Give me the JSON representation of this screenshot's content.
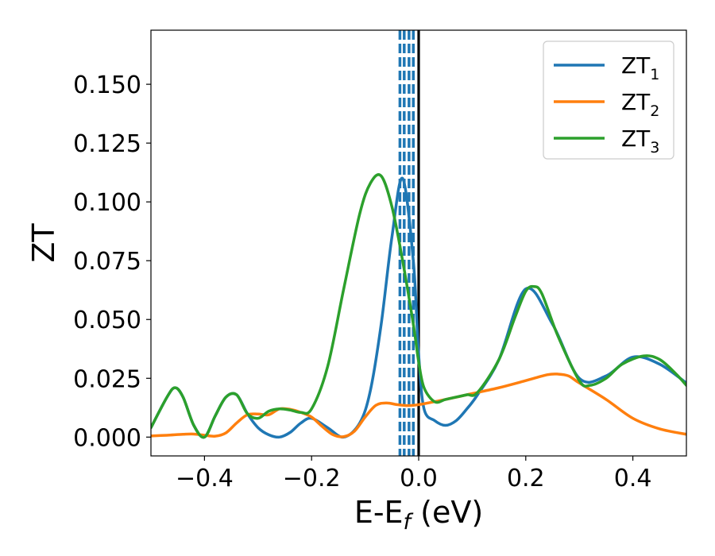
{
  "chart_data": {
    "type": "line",
    "title": "",
    "xlabel": "E-E",
    "xlabel_sub": "f",
    "xlabel_unit": " (eV)",
    "ylabel": "ZT",
    "xlim": [
      -0.5,
      0.5
    ],
    "ylim": [
      -0.008,
      0.173
    ],
    "xticks": [
      -0.4,
      -0.2,
      0.0,
      0.2,
      0.4
    ],
    "xtick_labels": [
      "−0.4",
      "−0.2",
      "0.0",
      "0.2",
      "0.4"
    ],
    "yticks": [
      0.0,
      0.025,
      0.05,
      0.075,
      0.1,
      0.125,
      0.15
    ],
    "ytick_labels": [
      "0.000",
      "0.025",
      "0.050",
      "0.075",
      "0.100",
      "0.125",
      "0.150"
    ],
    "grid": false,
    "legend_position": "top-right",
    "vlines": [
      {
        "x": 0.0,
        "color": "#000000",
        "style": "solid"
      },
      {
        "x": -0.035,
        "color": "#1f77b4",
        "style": "dashed"
      },
      {
        "x": -0.027,
        "color": "#1f77b4",
        "style": "dashed"
      },
      {
        "x": -0.018,
        "color": "#1f77b4",
        "style": "dashed"
      },
      {
        "x": -0.01,
        "color": "#1f77b4",
        "style": "dashed"
      }
    ],
    "series": [
      {
        "name": "ZT",
        "name_sub": "1",
        "color": "#1f77b4",
        "x": [
          -0.5,
          -0.47,
          -0.455,
          -0.44,
          -0.42,
          -0.4,
          -0.38,
          -0.36,
          -0.34,
          -0.32,
          -0.3,
          -0.28,
          -0.26,
          -0.24,
          -0.22,
          -0.2,
          -0.17,
          -0.14,
          -0.11,
          -0.09,
          -0.07,
          -0.05,
          -0.03,
          -0.01,
          0.0,
          0.01,
          0.03,
          0.05,
          0.07,
          0.09,
          0.11,
          0.15,
          0.2,
          0.25,
          0.3,
          0.35,
          0.4,
          0.45,
          0.5
        ],
        "y": [
          0.004,
          0.017,
          0.021,
          0.017,
          0.005,
          0.0,
          0.009,
          0.017,
          0.018,
          0.01,
          0.004,
          0.001,
          0.0,
          0.002,
          0.006,
          0.008,
          0.004,
          0.0,
          0.006,
          0.02,
          0.048,
          0.085,
          0.11,
          0.075,
          0.035,
          0.012,
          0.007,
          0.005,
          0.007,
          0.012,
          0.018,
          0.033,
          0.063,
          0.048,
          0.025,
          0.026,
          0.034,
          0.031,
          0.023
        ]
      },
      {
        "name": "ZT",
        "name_sub": "2",
        "color": "#ff7f0e",
        "x": [
          -0.5,
          -0.47,
          -0.44,
          -0.42,
          -0.4,
          -0.38,
          -0.36,
          -0.34,
          -0.32,
          -0.3,
          -0.28,
          -0.26,
          -0.24,
          -0.22,
          -0.2,
          -0.18,
          -0.16,
          -0.14,
          -0.12,
          -0.1,
          -0.08,
          -0.06,
          -0.04,
          -0.02,
          0.0,
          0.05,
          0.1,
          0.15,
          0.2,
          0.24,
          0.26,
          0.28,
          0.3,
          0.35,
          0.4,
          0.45,
          0.5
        ],
        "y": [
          0.0005,
          0.0008,
          0.0012,
          0.0013,
          0.0008,
          0.0004,
          0.0018,
          0.006,
          0.0095,
          0.0098,
          0.0095,
          0.012,
          0.0118,
          0.0105,
          0.0085,
          0.0045,
          0.001,
          0.0002,
          0.0025,
          0.0085,
          0.0135,
          0.0145,
          0.0138,
          0.0134,
          0.0138,
          0.016,
          0.0185,
          0.021,
          0.024,
          0.0265,
          0.0268,
          0.026,
          0.023,
          0.016,
          0.008,
          0.0035,
          0.0012
        ]
      },
      {
        "name": "ZT",
        "name_sub": "3",
        "color": "#2ca02c",
        "x": [
          -0.5,
          -0.47,
          -0.455,
          -0.44,
          -0.42,
          -0.4,
          -0.38,
          -0.36,
          -0.34,
          -0.32,
          -0.3,
          -0.28,
          -0.26,
          -0.24,
          -0.22,
          -0.2,
          -0.17,
          -0.14,
          -0.11,
          -0.09,
          -0.07,
          -0.05,
          -0.03,
          -0.01,
          0.0,
          0.01,
          0.03,
          0.05,
          0.07,
          0.09,
          0.11,
          0.15,
          0.18,
          0.2,
          0.215,
          0.23,
          0.26,
          0.3,
          0.32,
          0.35,
          0.38,
          0.42,
          0.45,
          0.48,
          0.5
        ],
        "y": [
          0.004,
          0.017,
          0.021,
          0.017,
          0.005,
          0.0,
          0.009,
          0.017,
          0.018,
          0.01,
          0.008,
          0.011,
          0.012,
          0.0115,
          0.0105,
          0.012,
          0.03,
          0.063,
          0.095,
          0.108,
          0.111,
          0.098,
          0.075,
          0.048,
          0.032,
          0.021,
          0.015,
          0.016,
          0.017,
          0.018,
          0.019,
          0.033,
          0.051,
          0.062,
          0.064,
          0.061,
          0.043,
          0.024,
          0.022,
          0.025,
          0.031,
          0.0345,
          0.033,
          0.027,
          0.022
        ]
      }
    ]
  }
}
